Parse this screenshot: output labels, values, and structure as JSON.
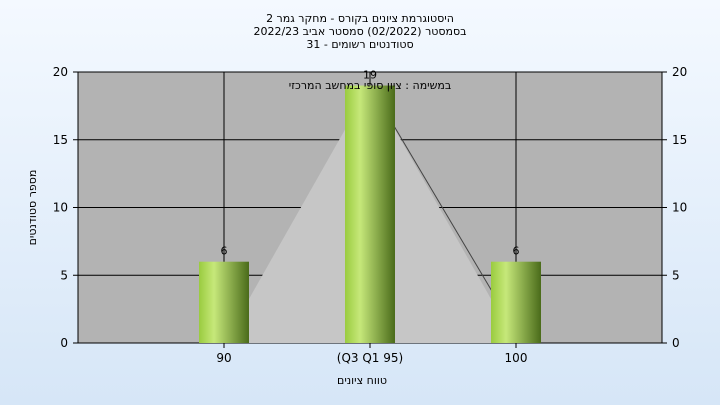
{
  "chart_data": {
    "type": "bar",
    "title_lines": [
      "היסטוגרמת ציונים בקורס - מחקר גמר 2",
      "בסמסטר  (02/2022)  סמסטר אביב 2022/23",
      "סטודנטים רשומים - 31"
    ],
    "annotation": "במשימה : ציון סופי במחשב המרכזי",
    "categories": [
      "90",
      "(Q3 Q1 95)",
      "100"
    ],
    "values": [
      6,
      19,
      6
    ],
    "data_labels": [
      "6",
      "19",
      "6"
    ],
    "ylim": [
      0,
      20
    ],
    "yticks": [
      0,
      5,
      10,
      15,
      20
    ],
    "ylabel": "מספר סטודנטים",
    "xlabel": "טווח ציונים",
    "grid": true,
    "colors": {
      "plot_bg": "#b3b3b3",
      "triangle": "#c6c6c6",
      "bar_light": "#c6e87a",
      "bar_mid": "#9acb3f",
      "bar_dark": "#4a6b1a",
      "grid": "#000000"
    }
  }
}
